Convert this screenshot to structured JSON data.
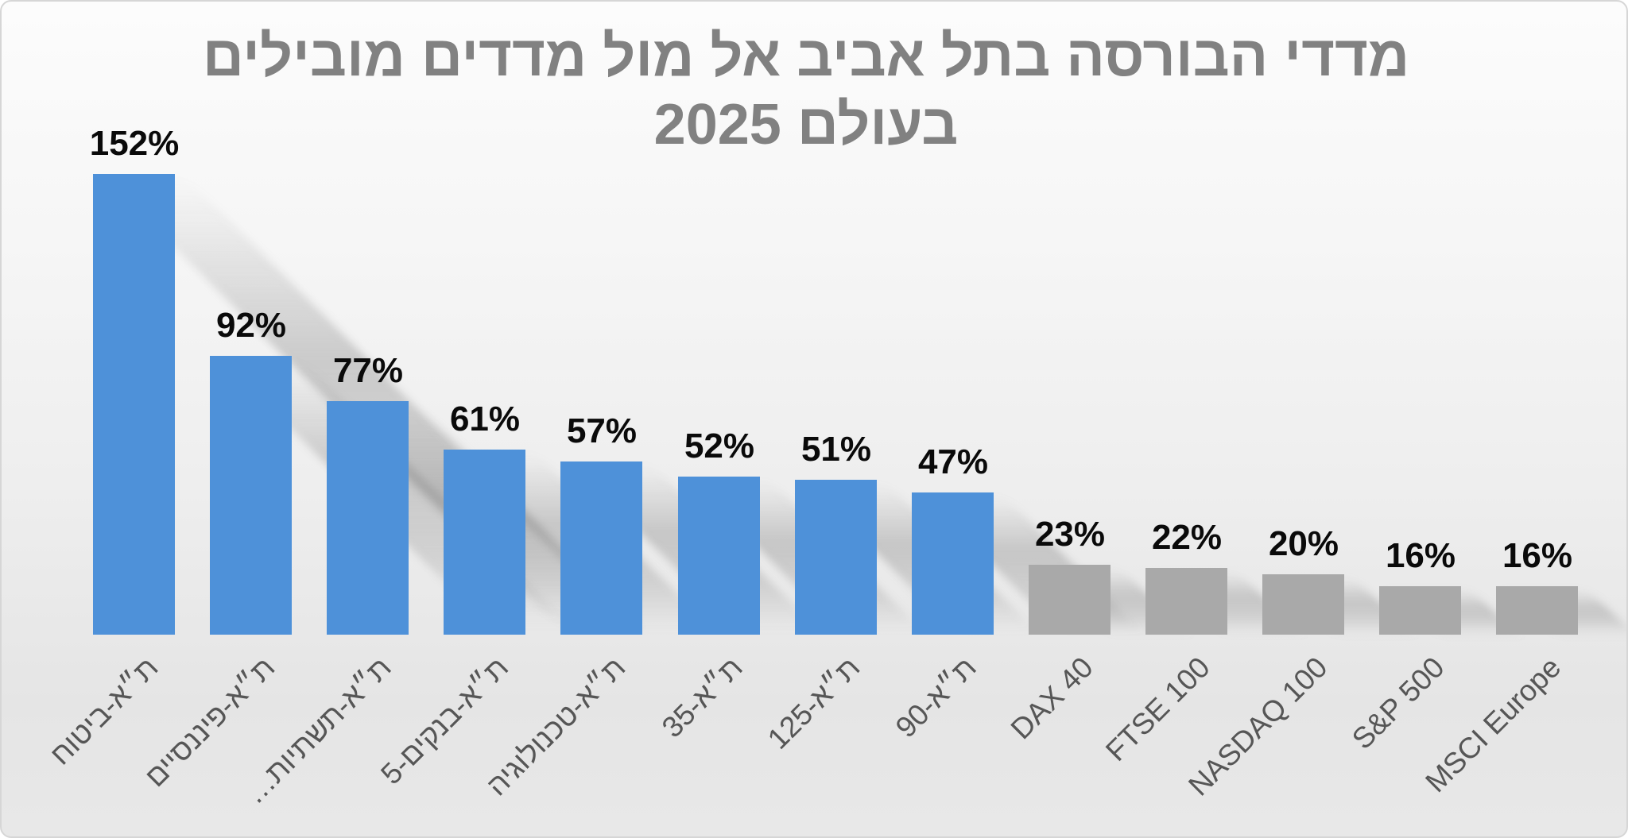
{
  "title": {
    "line1": "מדדי הבורסה בתל אביב אל מול מדדים מובילים",
    "line2": "בעולם 2025"
  },
  "chart_data": {
    "type": "bar",
    "title": "מדדי הבורסה בתל אביב אל מול מדדים מובילים בעולם 2025",
    "xlabel": "",
    "ylabel": "",
    "ylim": [
      0,
      165
    ],
    "grid": false,
    "legend": "none",
    "y_axis_visible": false,
    "xtick_rotation_deg": 45,
    "value_label_format": "percent",
    "categories": [
      "ת״א-ביטוח",
      "ת״א-פיננסיים",
      "ת״א-תשתיות…",
      "ת״א-בנקים-5",
      "ת״א-טכנולוגיה",
      "ת״א-35",
      "ת״א-125",
      "ת״א-90",
      "DAX 40",
      "FTSE 100",
      "NASDAQ 100",
      "S&P 500",
      "MSCI Europe"
    ],
    "values": [
      152,
      92,
      77,
      61,
      57,
      52,
      51,
      47,
      23,
      22,
      20,
      16,
      16
    ],
    "value_labels": [
      "152%",
      "92%",
      "77%",
      "61%",
      "57%",
      "52%",
      "51%",
      "47%",
      "23%",
      "22%",
      "20%",
      "16%",
      "16%"
    ],
    "bar_groups": [
      "tel-aviv-index",
      "tel-aviv-index",
      "tel-aviv-index",
      "tel-aviv-index",
      "tel-aviv-index",
      "tel-aviv-index",
      "tel-aviv-index",
      "tel-aviv-index",
      "world-index",
      "world-index",
      "world-index",
      "world-index",
      "world-index"
    ],
    "colors": {
      "tel-aviv-index": "#4E91D9",
      "world-index": "#A9A9A9"
    },
    "text_colors": {
      "title": "#818181",
      "value_labels": "#0a0a0a",
      "x_labels": "#565656"
    }
  }
}
